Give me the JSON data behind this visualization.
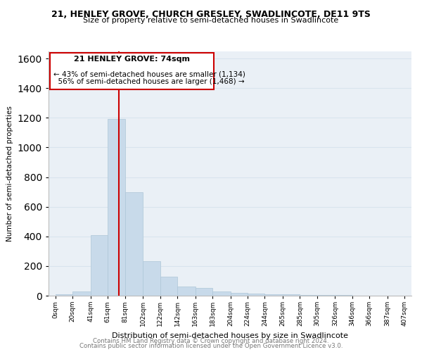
{
  "title": "21, HENLEY GROVE, CHURCH GRESLEY, SWADLINCOTE, DE11 9TS",
  "subtitle": "Size of property relative to semi-detached houses in Swadlincote",
  "xlabel": "Distribution of semi-detached houses by size in Swadlincote",
  "ylabel": "Number of semi-detached properties",
  "footer1": "Contains HM Land Registry data © Crown copyright and database right 2024.",
  "footer2": "Contains public sector information licensed under the Open Government Licence v3.0.",
  "annotation_title": "21 HENLEY GROVE: 74sqm",
  "annotation_line1": "← 43% of semi-detached houses are smaller (1,134)",
  "annotation_line2": "  56% of semi-detached houses are larger (1,468) →",
  "property_size": 74,
  "bar_centers": [
    10,
    30.5,
    51,
    71,
    91.5,
    112,
    132,
    152.5,
    173,
    193.5,
    214,
    234,
    254.5,
    275,
    295,
    315.5,
    336,
    356,
    376.5,
    397
  ],
  "bar_widths": [
    20,
    21,
    20,
    20,
    21,
    20,
    20,
    21,
    20,
    21,
    20,
    20,
    21,
    20,
    20,
    21,
    20,
    20,
    21,
    20
  ],
  "bar_heights": [
    10,
    30,
    410,
    1190,
    700,
    235,
    130,
    60,
    50,
    30,
    20,
    15,
    10,
    8,
    5,
    4,
    3,
    2,
    1,
    1
  ],
  "tick_positions": [
    0,
    20,
    41,
    61,
    81,
    102,
    122,
    142,
    163,
    183,
    204,
    224,
    244,
    265,
    285,
    305,
    326,
    346,
    366,
    387,
    407
  ],
  "tick_labels": [
    "0sqm",
    "20sqm",
    "41sqm",
    "61sqm",
    "81sqm",
    "102sqm",
    "122sqm",
    "142sqm",
    "163sqm",
    "183sqm",
    "204sqm",
    "224sqm",
    "244sqm",
    "265sqm",
    "285sqm",
    "305sqm",
    "326sqm",
    "346sqm",
    "366sqm",
    "387sqm",
    "407sqm"
  ],
  "bar_color": "#c8daea",
  "bar_edge_color": "#aec6d8",
  "grid_color": "#d8e4ee",
  "background_color": "#eaf0f6",
  "annotation_box_color": "#cc0000",
  "vline_color": "#cc0000",
  "ylim": [
    0,
    1650
  ],
  "xlim": [
    -8,
    415
  ],
  "yticks": [
    0,
    200,
    400,
    600,
    800,
    1000,
    1200,
    1400,
    1600
  ]
}
